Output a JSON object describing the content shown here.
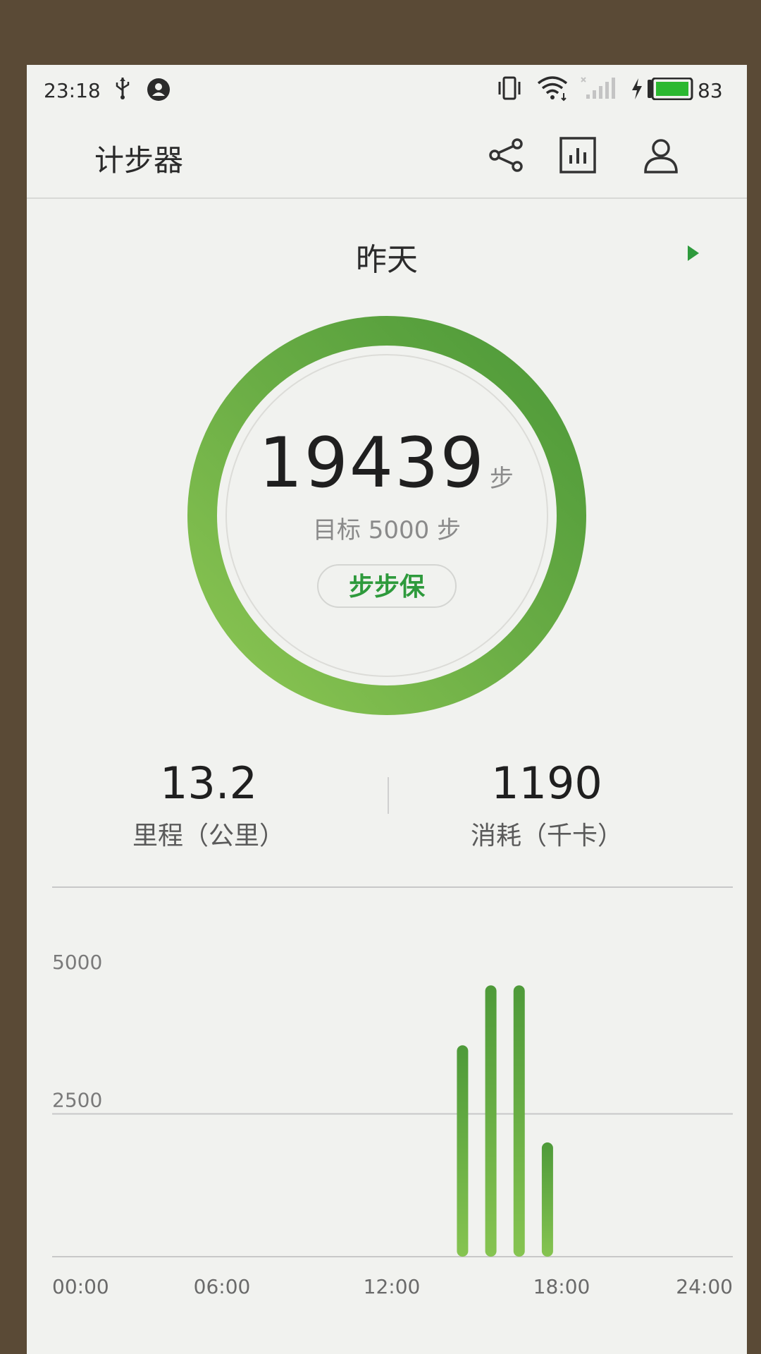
{
  "status_bar": {
    "time": "23:18",
    "battery_level": "83",
    "icons": [
      "usb-icon",
      "account-icon",
      "vibrate-icon",
      "wifi-icon",
      "signal-icon",
      "charge-icon",
      "battery-icon"
    ]
  },
  "app_bar": {
    "title": "计步器",
    "actions": [
      "share-icon",
      "bar-chart-icon",
      "person-icon"
    ]
  },
  "day": {
    "title": "昨天"
  },
  "summary": {
    "steps": "19439",
    "steps_unit": "步",
    "goal": "目标 5000 步",
    "progress_fraction": 1.0,
    "protect_label": "步步保"
  },
  "stats": {
    "distance_value": "13.2",
    "distance_label": "里程（公里）",
    "calories_value": "1190",
    "calories_label": "消耗（千卡）"
  },
  "colors": {
    "accent": "#2e9a3c",
    "ring_dark": "#4f9a3a",
    "ring_light": "#8cc653"
  },
  "chart_data": {
    "type": "bar",
    "title": "",
    "xlabel": "",
    "ylabel": "",
    "x_ticks": [
      "00:00",
      "06:00",
      "12:00",
      "18:00",
      "24:00"
    ],
    "y_ticks": [
      "5000",
      "2500"
    ],
    "ylim": [
      0,
      5000
    ],
    "xlim": [
      0,
      24
    ],
    "x": [
      14,
      15,
      16,
      17
    ],
    "values": [
      3700,
      4750,
      4750,
      2000
    ],
    "grid": true
  }
}
